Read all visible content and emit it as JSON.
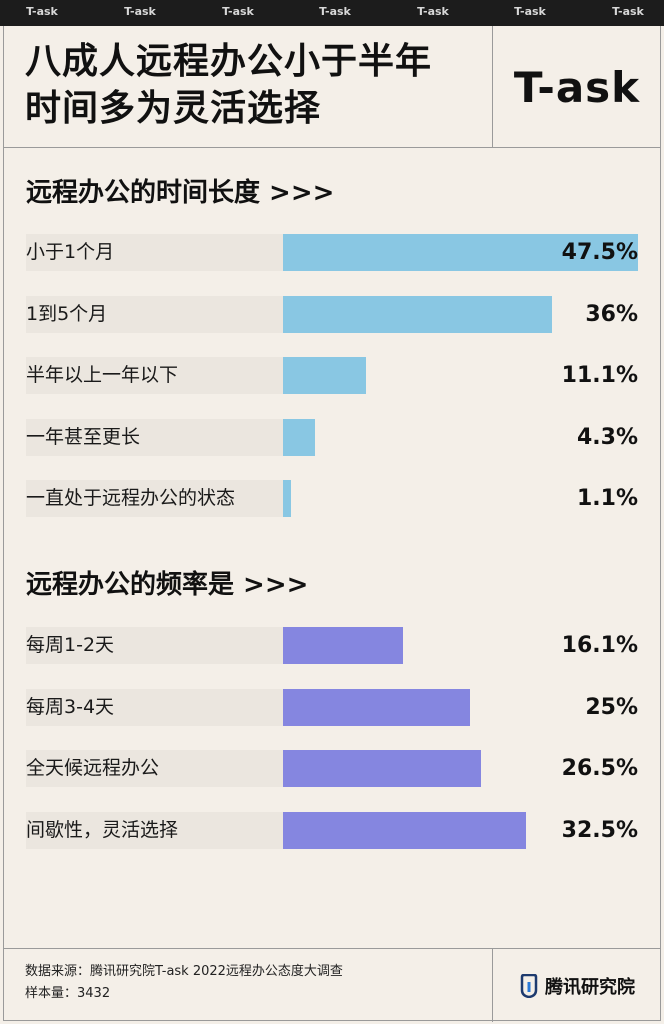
{
  "top_strip": [
    "T-ask",
    "T-ask",
    "T-ask",
    "T-ask",
    "T-ask",
    "T-ask",
    "T-ask"
  ],
  "header": {
    "title_line1": "八成人远程办公小于半年",
    "title_line2": "时间多为灵活选择",
    "logo": "T-ask"
  },
  "chart_data": [
    {
      "type": "bar",
      "title": "远程办公的时间长度 >>>",
      "categories": [
        "小于1个月",
        "1到5个月",
        "半年以上一年以下",
        "一年甚至更长",
        "一直处于远程办公的状态"
      ],
      "values": [
        47.5,
        36,
        11.1,
        4.3,
        1.1
      ],
      "value_labels": [
        "47.5%",
        "36%",
        "11.1%",
        "4.3%",
        "1.1%"
      ],
      "xlim": [
        0,
        47.5
      ],
      "color": "#89c7e3"
    },
    {
      "type": "bar",
      "title": "远程办公的频率是 >>>",
      "categories": [
        "每周1-2天",
        "每周3-4天",
        "全天候远程办公",
        "间歇性，灵活选择"
      ],
      "values": [
        16.1,
        25,
        26.5,
        32.5
      ],
      "value_labels": [
        "16.1%",
        "25%",
        "26.5%",
        "32.5%"
      ],
      "xlim": [
        0,
        47.5
      ],
      "color": "#8586e0"
    }
  ],
  "footer": {
    "source": "数据来源：腾讯研究院T-ask 2022远程办公态度大调查",
    "sample": "样本量：3432",
    "brand": "腾讯研究院",
    "brand_icon": "tencent-research-icon"
  }
}
